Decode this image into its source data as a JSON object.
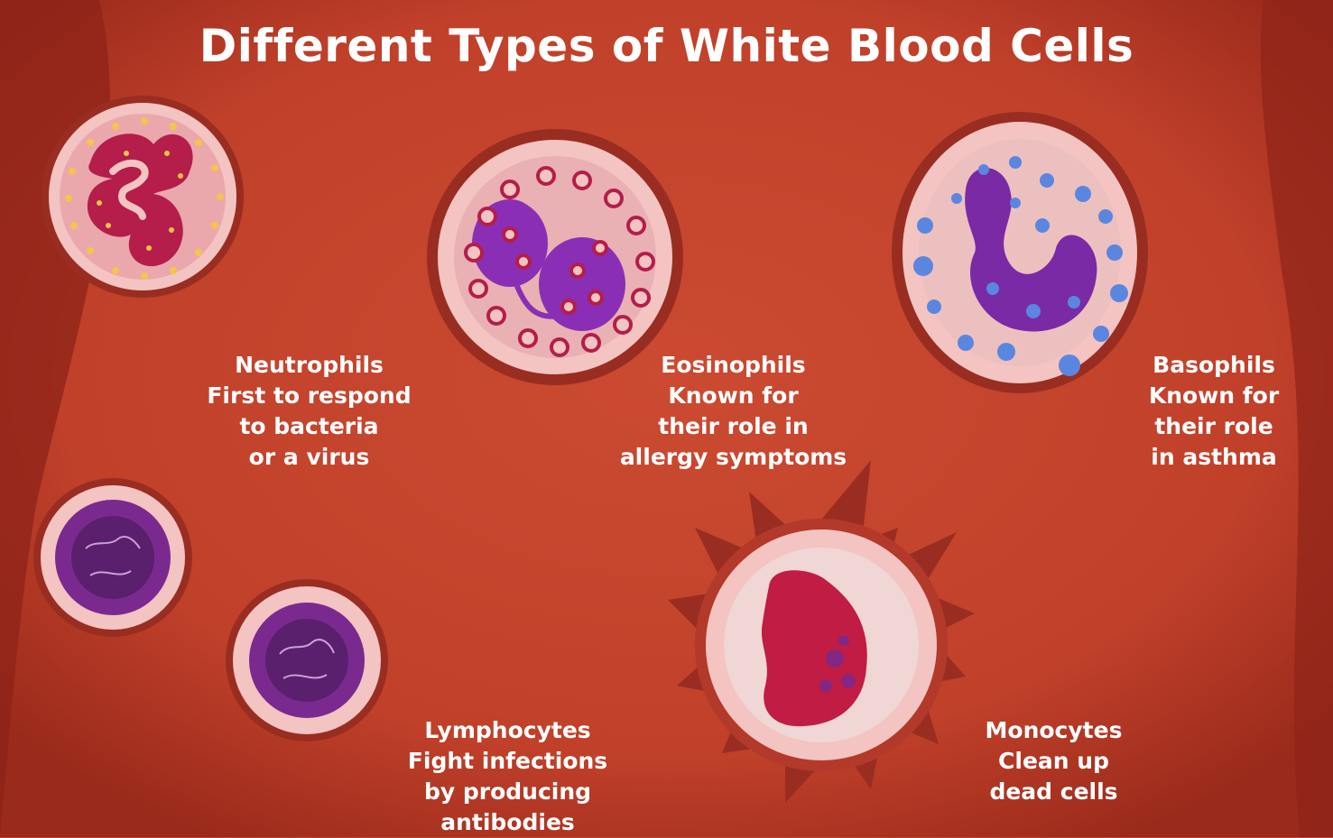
{
  "title": "Different Types of White Blood Cells",
  "cells": [
    {
      "id": "neutrophils",
      "name": "Neutrophils",
      "description": [
        "First to respond",
        "to bacteria",
        "or a virus"
      ]
    },
    {
      "id": "eosinophils",
      "name": "Eosinophils",
      "description": [
        "Known for",
        "their role in",
        "allergy symptoms"
      ]
    },
    {
      "id": "basophils",
      "name": "Basophils",
      "description": [
        "Known for",
        "their role",
        "in asthma"
      ]
    },
    {
      "id": "lymphocytes",
      "name": "Lymphocytes",
      "description": [
        "Fight infections",
        "by producing",
        "antibodies"
      ]
    },
    {
      "id": "monocytes",
      "name": "Monocytes",
      "description": [
        "Clean up",
        "dead cells"
      ]
    }
  ],
  "colors": {
    "background": "#c2412c",
    "background_dark": "#8e2318",
    "cell_halo": "#f3c4c2",
    "nucleus_purple": "#8a2fb5",
    "granule_blue": "#5b86e0",
    "granule_yellow": "#f4c54a"
  }
}
